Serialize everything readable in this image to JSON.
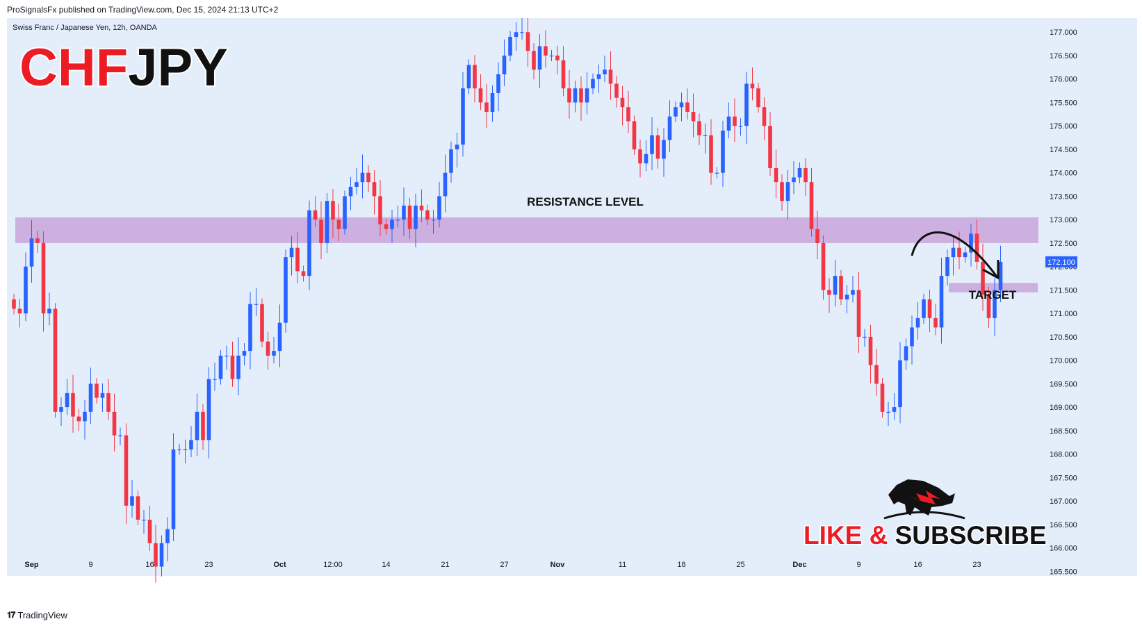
{
  "header": {
    "publisher": "ProSignalsFx published on TradingView.com, Dec 15, 2024 21:13 UTC+2"
  },
  "symbol": {
    "description": "Swiss Franc / Japanese Yen, 12h, OANDA",
    "big_title_part1": "CHF",
    "big_title_part2": "JPY"
  },
  "annotations": {
    "resistance_label": "RESISTANCE LEVEL",
    "target_label": "TARGET"
  },
  "branding": {
    "cta_part1": "LIKE",
    "cta_amp": "&",
    "cta_part2": "SUBSCRIBE",
    "footer_logo": "𝟏𝟕",
    "footer_text": "TradingView"
  },
  "colors": {
    "background": "#e3eefa",
    "up": "#2962ff",
    "down": "#f23645",
    "zone": "#cdb0e0",
    "price_tag": "#2962ff"
  },
  "chart_data": {
    "type": "candlestick",
    "timeframe": "12h",
    "current_price": "172.100",
    "ylim": [
      165.4,
      177.3
    ],
    "y_ticks": [
      "165.500",
      "166.000",
      "166.500",
      "167.000",
      "167.500",
      "168.000",
      "168.500",
      "169.000",
      "169.500",
      "170.000",
      "170.500",
      "171.000",
      "171.500",
      "172.000",
      "172.500",
      "173.000",
      "173.500",
      "174.000",
      "174.500",
      "175.000",
      "175.500",
      "176.000",
      "176.500",
      "177.000"
    ],
    "x_ticks": [
      {
        "label": "Sep",
        "index": 3,
        "bold": true
      },
      {
        "label": "9",
        "index": 13,
        "bold": false
      },
      {
        "label": "16",
        "index": 23,
        "bold": false
      },
      {
        "label": "23",
        "index": 33,
        "bold": false
      },
      {
        "label": "Oct",
        "index": 45,
        "bold": true
      },
      {
        "label": "12:00",
        "index": 54,
        "bold": false
      },
      {
        "label": "14",
        "index": 63,
        "bold": false
      },
      {
        "label": "21",
        "index": 73,
        "bold": false
      },
      {
        "label": "27",
        "index": 83,
        "bold": false
      },
      {
        "label": "Nov",
        "index": 92,
        "bold": true
      },
      {
        "label": "11",
        "index": 103,
        "bold": false
      },
      {
        "label": "18",
        "index": 113,
        "bold": false
      },
      {
        "label": "25",
        "index": 123,
        "bold": false
      },
      {
        "label": "Dec",
        "index": 133,
        "bold": true
      },
      {
        "label": "9",
        "index": 143,
        "bold": false
      },
      {
        "label": "16",
        "index": 153,
        "bold": false
      },
      {
        "label": "23",
        "index": 163,
        "bold": false
      }
    ],
    "resistance_zone": [
      172.5,
      173.05
    ],
    "target_zone": [
      171.45,
      171.65
    ],
    "closes": [
      171.1,
      171.0,
      172.0,
      172.6,
      172.5,
      171.0,
      171.1,
      168.9,
      169.0,
      169.3,
      168.8,
      168.7,
      168.9,
      169.5,
      169.2,
      169.3,
      168.9,
      168.4,
      168.4,
      166.9,
      167.1,
      166.6,
      166.6,
      166.1,
      165.6,
      166.1,
      166.4,
      168.1,
      168.1,
      168.1,
      168.3,
      168.9,
      168.3,
      169.6,
      169.6,
      170.1,
      170.1,
      169.6,
      170.1,
      170.2,
      171.2,
      171.2,
      170.4,
      170.1,
      170.2,
      170.8,
      172.2,
      172.4,
      171.9,
      171.8,
      173.2,
      173.0,
      172.5,
      173.4,
      173.0,
      172.8,
      173.5,
      173.7,
      173.8,
      174.0,
      173.8,
      173.5,
      172.9,
      172.8,
      173.0,
      173.0,
      173.3,
      172.8,
      173.3,
      173.2,
      173.0,
      173.0,
      173.5,
      174.0,
      174.5,
      174.6,
      175.8,
      176.3,
      175.8,
      175.5,
      175.3,
      175.7,
      176.1,
      176.5,
      176.9,
      177.0,
      177.0,
      176.6,
      176.2,
      176.7,
      176.5,
      176.5,
      176.4,
      175.8,
      175.5,
      175.8,
      175.5,
      175.8,
      176.0,
      176.1,
      176.2,
      175.9,
      175.6,
      175.4,
      175.1,
      174.5,
      174.2,
      174.4,
      174.8,
      174.3,
      174.7,
      175.2,
      175.4,
      175.5,
      175.3,
      175.1,
      174.8,
      174.8,
      174.0,
      174.0,
      174.9,
      175.2,
      175.0,
      175.0,
      175.9,
      175.8,
      175.4,
      175.0,
      174.1,
      173.8,
      173.4,
      173.8,
      173.9,
      174.1,
      173.8,
      172.8,
      172.5,
      171.5,
      171.4,
      171.8,
      171.3,
      171.4,
      171.5,
      170.5,
      170.5,
      169.9,
      169.5,
      168.9,
      168.9,
      169.0,
      170.0,
      170.3,
      170.7,
      170.9,
      171.3,
      170.9,
      170.7,
      171.8,
      172.2,
      172.4,
      172.2,
      172.3,
      172.7,
      172.1,
      171.4,
      170.9,
      171.5,
      172.1
    ]
  }
}
